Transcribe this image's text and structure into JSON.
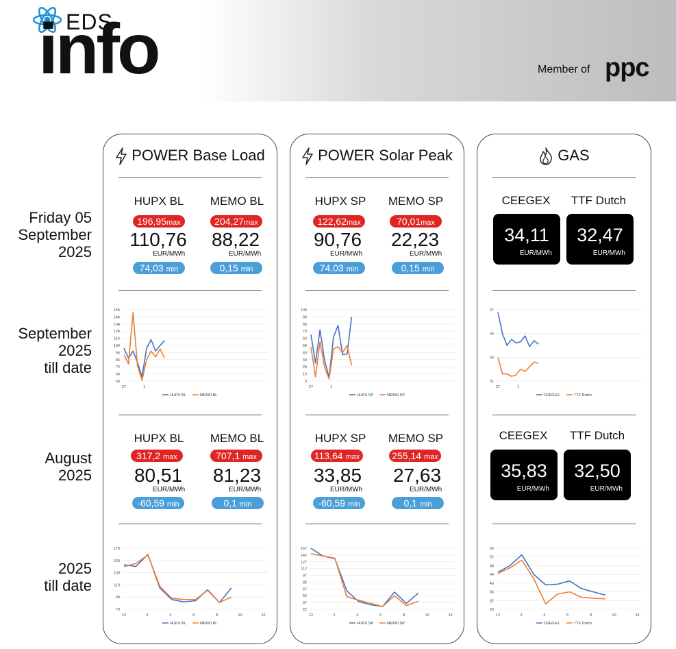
{
  "header": {
    "eds": "EDS",
    "info": "info",
    "member": "Member of",
    "ppc": "ppc"
  },
  "row_labels": {
    "daily": [
      "Friday 05",
      "September",
      "2025"
    ],
    "month": [
      "September",
      "2025",
      "till date"
    ],
    "prev_month": [
      "August",
      "2025"
    ],
    "ytd": [
      "2025",
      "till date"
    ]
  },
  "cards": {
    "base": {
      "title": "POWER Base Load"
    },
    "solar": {
      "title": "POWER Solar Peak"
    },
    "gas": {
      "title": "GAS"
    }
  },
  "daily": {
    "base": {
      "left": {
        "label": "HUPX BL",
        "max": "196,95",
        "value": "110,76",
        "unit": "EUR/MWh",
        "min": "74,03"
      },
      "right": {
        "label": "MEMO BL",
        "max": "204,27",
        "value": "88,22",
        "unit": "EUR/MWh",
        "min": "0,15"
      }
    },
    "solar": {
      "left": {
        "label": "HUPX SP",
        "max": "122,62",
        "value": "90,76",
        "unit": "EUR/MWh",
        "min": "74,03"
      },
      "right": {
        "label": "MEMO SP",
        "max": "70,01",
        "value": "22,23",
        "unit": "EUR/MWh",
        "min": "0,15"
      }
    },
    "gas": {
      "left": {
        "label": "CEEGEX",
        "value": "34,11",
        "unit": "EUR/MWh"
      },
      "right": {
        "label": "TTF Dutch",
        "value": "32,47",
        "unit": "EUR/MWh"
      }
    }
  },
  "august": {
    "base": {
      "left": {
        "label": "HUPX BL",
        "max": "317,2",
        "value": "80,51",
        "unit": "EUR/MWh",
        "min": "-60,59"
      },
      "right": {
        "label": "MEMO BL",
        "max": "707,1",
        "value": "81,23",
        "unit": "EUR/MWh",
        "min": "0,1"
      }
    },
    "solar": {
      "left": {
        "label": "HUPX SP",
        "max": "113,64",
        "value": "33,85",
        "unit": "EUR/MWh",
        "min": "-60,59"
      },
      "right": {
        "label": "MEMO SP",
        "max": "255,14",
        "value": "27,63",
        "unit": "EUR/MWh",
        "min": "0,1"
      }
    },
    "gas": {
      "left": {
        "label": "CEEGEX",
        "value": "35,83",
        "unit": "EUR/MWh"
      },
      "right": {
        "label": "TTF Dutch",
        "value": "32,50",
        "unit": "EUR/MWh"
      }
    }
  },
  "pill_words": {
    "max": "max",
    "min": "min"
  },
  "colors": {
    "blue_series": "#4472c4",
    "orange_series": "#ed7d31",
    "max_pill": "#e02525",
    "min_pill": "#4a9fd8"
  },
  "chart_data": [
    {
      "id": "sep-base",
      "type": "line",
      "x_ticks": [
        "27",
        "1"
      ],
      "y_ticks": [
        54,
        64,
        74,
        84,
        94,
        104,
        114,
        124,
        134,
        144,
        154
      ],
      "ylim": [
        54,
        154
      ],
      "series": [
        {
          "name": "HUPX BL",
          "values": [
            100,
            86,
            96,
            80,
            60,
            100,
            112,
            96,
            104,
            111
          ]
        },
        {
          "name": "MEMO BL",
          "values": [
            91,
            78,
            150,
            75,
            55,
            84,
            96,
            88,
            99,
            86
          ]
        }
      ]
    },
    {
      "id": "sep-solar",
      "type": "line",
      "x_ticks": [
        "27",
        "1"
      ],
      "y_ticks": [
        0,
        10,
        20,
        30,
        40,
        50,
        60,
        70,
        80,
        90,
        100
      ],
      "ylim": [
        0,
        100
      ],
      "series": [
        {
          "name": "HUPX SP",
          "values": [
            65,
            25,
            72,
            30,
            5,
            62,
            78,
            37,
            38,
            90
          ]
        },
        {
          "name": "MEMO SP",
          "values": [
            48,
            6,
            55,
            20,
            3,
            45,
            48,
            40,
            50,
            22
          ]
        }
      ]
    },
    {
      "id": "sep-gas",
      "type": "line",
      "x_ticks": [
        "27",
        "1"
      ],
      "y_ticks": [
        31,
        33,
        35,
        37
      ],
      "ylim": [
        31,
        37
      ],
      "series": [
        {
          "name": "CEEGEX",
          "values": [
            36.8,
            35.0,
            34.0,
            34.5,
            34.2,
            34.3,
            34.8,
            33.9,
            34.4,
            34.1
          ]
        },
        {
          "name": "TTF Dutch",
          "values": [
            33.0,
            31.6,
            31.6,
            31.4,
            31.5,
            32.0,
            31.8,
            32.2,
            32.6,
            32.5
          ]
        }
      ]
    },
    {
      "id": "ytd-base",
      "type": "line",
      "x_ticks": [
        "12",
        "2",
        "4",
        "6",
        "8",
        "10",
        "12"
      ],
      "y_ticks": [
        70,
        90,
        110,
        130,
        150,
        170
      ],
      "ylim": [
        70,
        170
      ],
      "series": [
        {
          "name": "HUPX BL",
          "values": [
            143,
            140,
            160,
            105,
            86,
            82,
            84,
            102,
            81,
            105
          ]
        },
        {
          "name": "MEMO BL",
          "values": [
            140,
            145,
            159,
            108,
            88,
            86,
            86,
            101,
            81,
            90
          ]
        }
      ]
    },
    {
      "id": "ytd-solar",
      "type": "line",
      "x_ticks": [
        "12",
        "2",
        "4",
        "6",
        "8",
        "10",
        "12"
      ],
      "y_ticks": [
        22,
        37,
        52,
        67,
        82,
        97,
        112,
        127,
        142,
        157
      ],
      "ylim": [
        22,
        157
      ],
      "series": [
        {
          "name": "HUPX SP",
          "values": [
            157,
            140,
            134,
            63,
            39,
            32,
            28,
            60,
            35,
            58
          ]
        },
        {
          "name": "MEMO SP",
          "values": [
            145,
            140,
            135,
            50,
            42,
            35,
            28,
            52,
            30,
            40
          ]
        }
      ]
    },
    {
      "id": "ytd-gas",
      "type": "line",
      "x_ticks": [
        "12",
        "2",
        "4",
        "6",
        "8",
        "10",
        "12"
      ],
      "y_ticks": [
        28,
        32,
        36,
        40,
        44,
        48,
        52,
        56
      ],
      "ylim": [
        28,
        56
      ],
      "series": [
        {
          "name": "CEEGEX",
          "values": [
            45,
            48,
            53,
            44,
            39.2,
            39.5,
            41,
            37.5,
            36,
            34.5
          ]
        },
        {
          "name": "TTF Dutch",
          "values": [
            44.5,
            47,
            50.5,
            42,
            30.5,
            35,
            36,
            33.5,
            33,
            32.8
          ]
        }
      ]
    }
  ]
}
